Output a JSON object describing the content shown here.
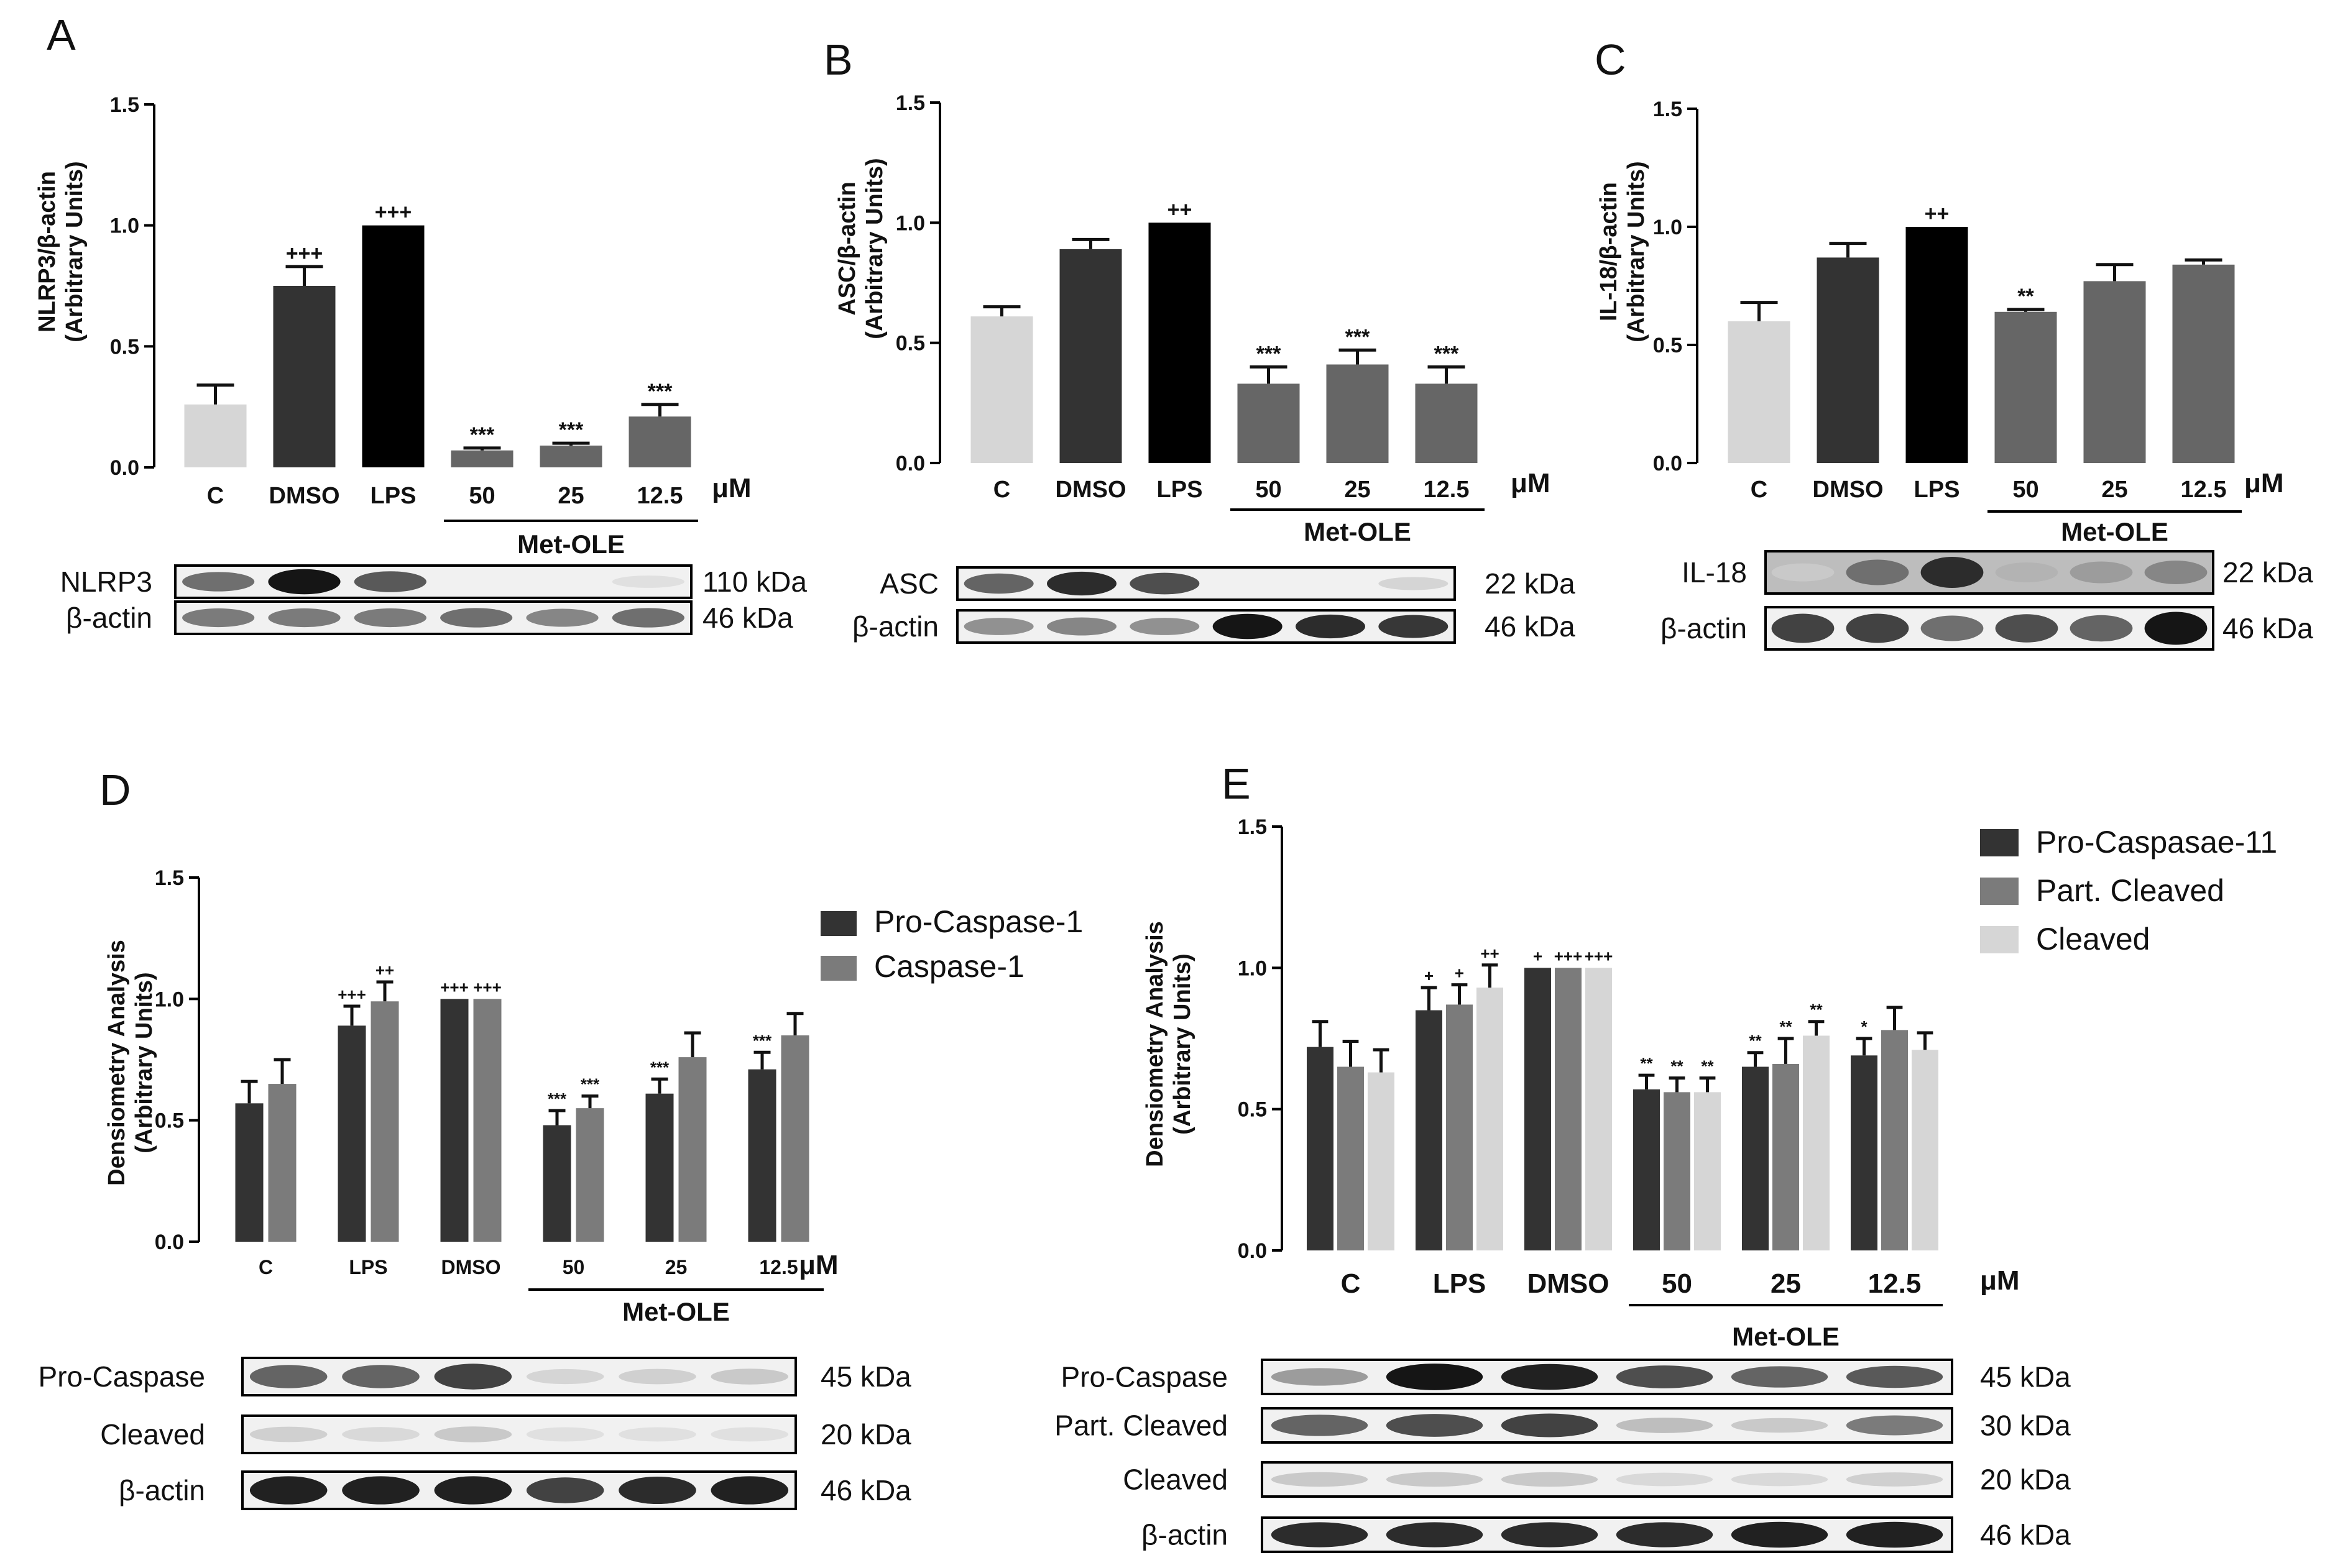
{
  "panels": [
    {
      "letter": "A",
      "ylabel": [
        "NLRP3/β-actin",
        "(Arbitrary Units)"
      ],
      "unit": "μM",
      "group_label": "Met-OLE",
      "chart_data": {
        "type": "bar",
        "categories": [
          "C",
          "DMSO",
          "LPS",
          "50",
          "25",
          "12.5"
        ],
        "group_members": [
          3,
          4,
          5
        ],
        "ylim": [
          0,
          1.5
        ],
        "yticks": [
          "0.0",
          "0.5",
          "1.0",
          "1.5"
        ],
        "series": [
          {
            "values": [
              0.26,
              0.75,
              1.0,
              0.07,
              0.09,
              0.21
            ],
            "errors": [
              0.08,
              0.08,
              0.0,
              0.01,
              0.01,
              0.05
            ],
            "colors": [
              "#d6d6d6",
              "#333333",
              "#000000",
              "#666666",
              "#666666",
              "#666666"
            ],
            "annotations": [
              "",
              "+++",
              "+++",
              "***",
              "***",
              "***"
            ]
          }
        ]
      },
      "blots": [
        {
          "label": "NLRP3",
          "kda": "110 kDa",
          "pattern": [
            0.55,
            0.95,
            0.65,
            0.0,
            0.0,
            0.05
          ]
        },
        {
          "label": "β-actin",
          "kda": "46 kDa",
          "pattern": [
            0.5,
            0.5,
            0.5,
            0.55,
            0.45,
            0.55
          ]
        }
      ]
    },
    {
      "letter": "B",
      "ylabel": [
        "ASC/β-actin",
        "(Arbitrary Units)"
      ],
      "unit": "μM",
      "group_label": "Met-OLE",
      "chart_data": {
        "type": "bar",
        "categories": [
          "C",
          "DMSO",
          "LPS",
          "50",
          "25",
          "12.5"
        ],
        "group_members": [
          3,
          4,
          5
        ],
        "ylim": [
          0,
          1.5
        ],
        "yticks": [
          "0.0",
          "0.5",
          "1.0",
          "1.5"
        ],
        "series": [
          {
            "values": [
              0.61,
              0.89,
              1.0,
              0.33,
              0.41,
              0.33
            ],
            "errors": [
              0.04,
              0.04,
              0.0,
              0.07,
              0.06,
              0.07
            ],
            "colors": [
              "#d6d6d6",
              "#333333",
              "#000000",
              "#666666",
              "#666666",
              "#666666"
            ],
            "annotations": [
              "",
              "",
              "++",
              "***",
              "***",
              "***"
            ]
          }
        ]
      },
      "blots": [
        {
          "label": "ASC",
          "kda": "22 kDa",
          "pattern": [
            0.6,
            0.85,
            0.7,
            0.0,
            0.0,
            0.1
          ]
        },
        {
          "label": "β-actin",
          "kda": "46 kDa",
          "pattern": [
            0.4,
            0.45,
            0.4,
            0.95,
            0.85,
            0.8
          ]
        }
      ]
    },
    {
      "letter": "C",
      "ylabel": [
        "IL-18/β-actin",
        "(Arbitrary Units)"
      ],
      "unit": "μM",
      "group_label": "Met-OLE",
      "chart_data": {
        "type": "bar",
        "categories": [
          "C",
          "DMSO",
          "LPS",
          "50",
          "25",
          "12.5"
        ],
        "group_members": [
          3,
          4,
          5
        ],
        "ylim": [
          0,
          1.5
        ],
        "yticks": [
          "0.0",
          "0.5",
          "1.0",
          "1.5"
        ],
        "series": [
          {
            "values": [
              0.6,
              0.87,
              1.0,
              0.64,
              0.77,
              0.84
            ],
            "errors": [
              0.08,
              0.06,
              0.0,
              0.01,
              0.07,
              0.02
            ],
            "colors": [
              "#d6d6d6",
              "#333333",
              "#000000",
              "#666666",
              "#666666",
              "#666666"
            ],
            "annotations": [
              "",
              "",
              "++",
              "**",
              "",
              ""
            ]
          }
        ]
      },
      "blots": [
        {
          "label": "IL-18",
          "kda": "22 kDa",
          "pattern": [
            0.15,
            0.55,
            0.85,
            0.25,
            0.35,
            0.45
          ],
          "dark_bg": true
        },
        {
          "label": "β-actin",
          "kda": "46 kDa",
          "pattern": [
            0.75,
            0.75,
            0.55,
            0.7,
            0.6,
            0.95
          ]
        }
      ]
    },
    {
      "letter": "D",
      "ylabel": [
        "Densiometry Analysis",
        "(Arbitrary Units)"
      ],
      "unit": "μM",
      "group_label": "Met-OLE",
      "chart_data": {
        "type": "bar",
        "categories": [
          "C",
          "LPS",
          "DMSO",
          "50",
          "25",
          "12.5"
        ],
        "group_members": [
          3,
          4,
          5
        ],
        "ylim": [
          0,
          1.5
        ],
        "yticks": [
          "0.0",
          "0.5",
          "1.0",
          "1.5"
        ],
        "legend": "top-right",
        "series": [
          {
            "name": "Pro-Caspase-1",
            "color": "#333333",
            "values": [
              0.57,
              0.89,
              1.0,
              0.48,
              0.61,
              0.71
            ],
            "errors": [
              0.09,
              0.08,
              0.0,
              0.06,
              0.06,
              0.07
            ],
            "annotations": [
              "",
              "+++",
              "+++",
              "***",
              "***",
              "***"
            ]
          },
          {
            "name": "Caspase-1",
            "color": "#7b7b7b",
            "values": [
              0.65,
              0.99,
              1.0,
              0.55,
              0.76,
              0.85
            ],
            "errors": [
              0.1,
              0.08,
              0.0,
              0.05,
              0.1,
              0.09
            ],
            "annotations": [
              "",
              "++",
              "+++",
              "***",
              "",
              ""
            ]
          }
        ]
      },
      "blots": [
        {
          "label": "Pro-Caspase",
          "kda": "45 kDa",
          "pattern": [
            0.6,
            0.6,
            0.75,
            0.1,
            0.12,
            0.15
          ]
        },
        {
          "label": "Cleaved",
          "kda": "20 kDa",
          "pattern": [
            0.12,
            0.08,
            0.15,
            0.05,
            0.05,
            0.05
          ]
        },
        {
          "label": "β-actin",
          "kda": "46 kDa",
          "pattern": [
            0.9,
            0.9,
            0.9,
            0.75,
            0.85,
            0.9
          ]
        }
      ]
    },
    {
      "letter": "E",
      "ylabel": [
        "Densiometry Analysis",
        "(Arbitrary Units)"
      ],
      "unit": "μM",
      "group_label": "Met-OLE",
      "chart_data": {
        "type": "bar",
        "categories": [
          "C",
          "LPS",
          "DMSO",
          "50",
          "25",
          "12.5"
        ],
        "group_members": [
          3,
          4,
          5
        ],
        "ylim": [
          0,
          1.5
        ],
        "yticks": [
          "0.0",
          "0.5",
          "1.0",
          "1.5"
        ],
        "legend": "top-right",
        "series": [
          {
            "name": "Pro-Caspasae-11",
            "color": "#333333",
            "values": [
              0.72,
              0.85,
              1.0,
              0.57,
              0.65,
              0.69
            ],
            "errors": [
              0.09,
              0.08,
              0.0,
              0.05,
              0.05,
              0.06
            ],
            "annotations": [
              "",
              "+",
              "+",
              "**",
              "**",
              "*"
            ]
          },
          {
            "name": "Part. Cleaved",
            "color": "#7b7b7b",
            "values": [
              0.65,
              0.87,
              1.0,
              0.56,
              0.66,
              0.78
            ],
            "errors": [
              0.09,
              0.07,
              0.0,
              0.05,
              0.09,
              0.08
            ],
            "annotations": [
              "",
              "+",
              "+++",
              "**",
              "**",
              ""
            ]
          },
          {
            "name": "Cleaved",
            "color": "#d6d6d6",
            "values": [
              0.63,
              0.93,
              1.0,
              0.56,
              0.76,
              0.71
            ],
            "errors": [
              0.08,
              0.08,
              0.0,
              0.05,
              0.05,
              0.06
            ],
            "annotations": [
              "",
              "++",
              "+++",
              "**",
              "**",
              ""
            ]
          }
        ]
      },
      "blots": [
        {
          "label": "Pro-Caspase",
          "kda": "45 kDa",
          "pattern": [
            0.35,
            0.95,
            0.9,
            0.7,
            0.6,
            0.65
          ]
        },
        {
          "label": "Part. Cleaved",
          "kda": "30 kDa",
          "pattern": [
            0.6,
            0.7,
            0.75,
            0.2,
            0.15,
            0.5
          ]
        },
        {
          "label": "Cleaved",
          "kda": "20 kDa",
          "pattern": [
            0.15,
            0.15,
            0.15,
            0.08,
            0.08,
            0.12
          ]
        },
        {
          "label": "β-actin",
          "kda": "46 kDa",
          "pattern": [
            0.85,
            0.85,
            0.85,
            0.85,
            0.9,
            0.9
          ]
        }
      ]
    }
  ]
}
